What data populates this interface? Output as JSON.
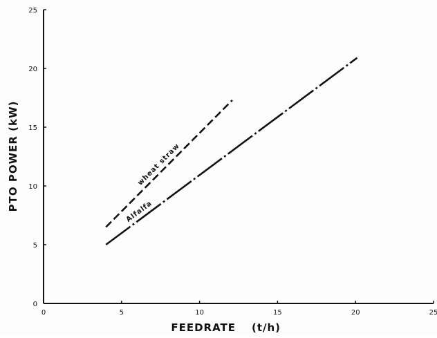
{
  "chart_data": {
    "type": "line",
    "title": "",
    "xlabel": "FEEDRATE",
    "xunit": "(t/h)",
    "ylabel": "PTO POWER (kW)",
    "xlim": [
      0,
      25
    ],
    "ylim": [
      0,
      25
    ],
    "xticks": [
      "0",
      "5",
      "10",
      "15",
      "20",
      "25"
    ],
    "yticks": [
      "0",
      "5",
      "10",
      "15",
      "20",
      "25"
    ],
    "grid": false,
    "legend": "none",
    "series": [
      {
        "name": "wheat straw",
        "style": "dashed",
        "color": "#111111",
        "x": [
          4,
          12.1
        ],
        "y": [
          6.5,
          17.3
        ]
      },
      {
        "name": "Alfalfa",
        "style": "dash-dot",
        "color": "#111111",
        "x": [
          4,
          20.1
        ],
        "y": [
          5,
          20.9
        ]
      }
    ]
  }
}
